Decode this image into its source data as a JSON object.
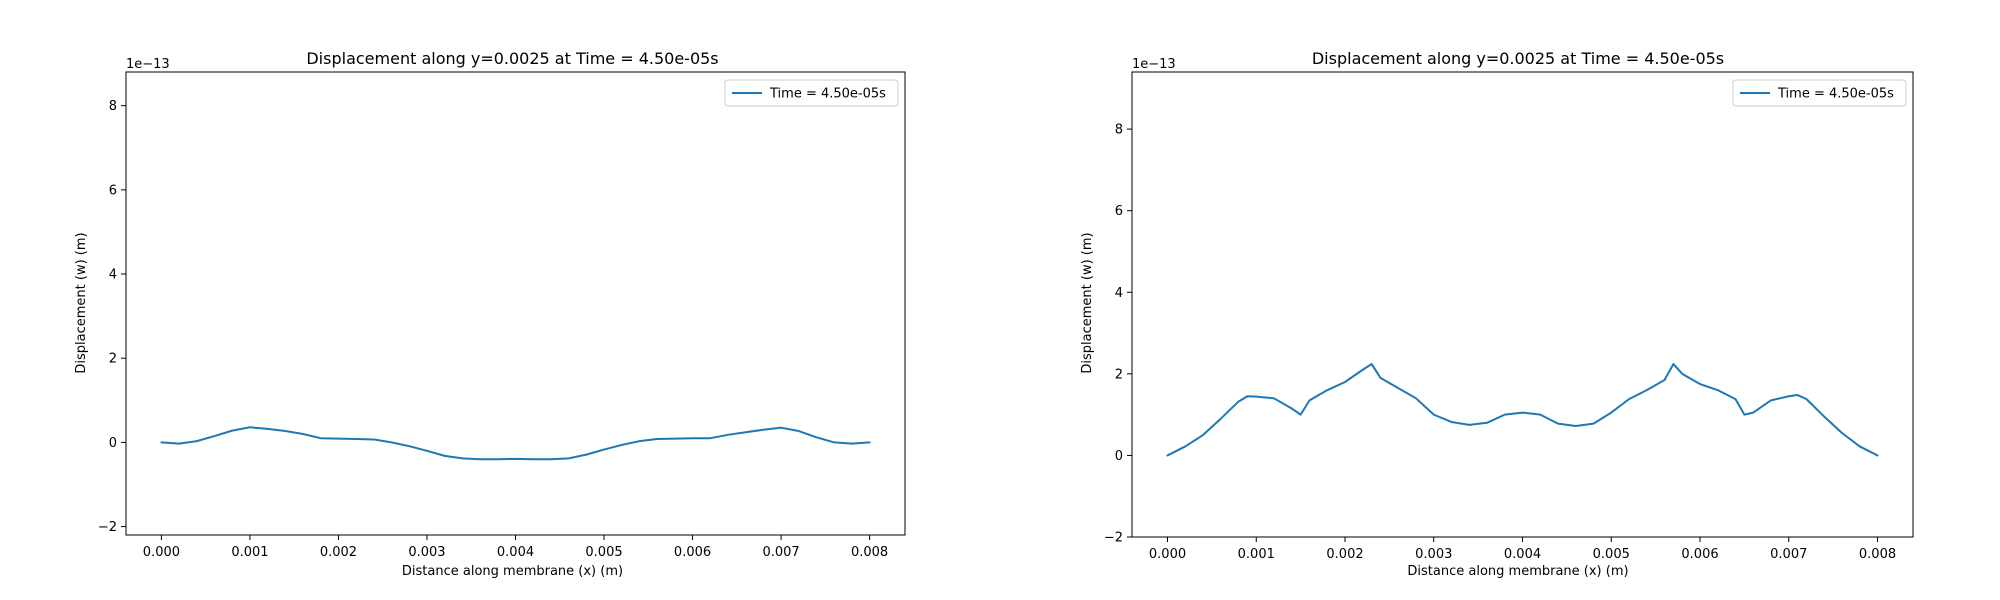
{
  "chart_data": [
    {
      "type": "line",
      "title": "Displacement along y=0.0025 at Time = 4.50e-05s",
      "xlabel": "Distance along membrane (x) (m)",
      "ylabel": "Displacement (w) (m)",
      "offset_label": "1e−13",
      "xlim": [
        -0.0004,
        0.0084
      ],
      "ylim": [
        -2.2,
        8.8
      ],
      "xticks": [
        0.0,
        0.001,
        0.002,
        0.003,
        0.004,
        0.005,
        0.006,
        0.007,
        0.008
      ],
      "xtick_labels": [
        "0.000",
        "0.001",
        "0.002",
        "0.003",
        "0.004",
        "0.005",
        "0.006",
        "0.007",
        "0.008"
      ],
      "yticks": [
        -2,
        0,
        2,
        4,
        6,
        8
      ],
      "ytick_labels": [
        "−2",
        "0",
        "2",
        "4",
        "6",
        "8"
      ],
      "legend_position": "upper right",
      "grid": false,
      "series": [
        {
          "name": "Time = 4.50e-05s",
          "color": "#1f77b4",
          "x": [
            0.0,
            0.0002,
            0.0004,
            0.0006,
            0.0008,
            0.001,
            0.0012,
            0.0014,
            0.0016,
            0.0018,
            0.002,
            0.0022,
            0.0024,
            0.0026,
            0.0028,
            0.003,
            0.0032,
            0.0034,
            0.0036,
            0.0038,
            0.004,
            0.0042,
            0.0044,
            0.0046,
            0.0048,
            0.005,
            0.0052,
            0.0054,
            0.0056,
            0.0058,
            0.006,
            0.0062,
            0.0064,
            0.0066,
            0.0068,
            0.007,
            0.0072,
            0.0074,
            0.0076,
            0.0078,
            0.008
          ],
          "y": [
            0.0,
            -0.03,
            0.03,
            0.15,
            0.28,
            0.36,
            0.32,
            0.27,
            0.2,
            0.1,
            0.09,
            0.08,
            0.07,
            0.0,
            -0.09,
            -0.2,
            -0.32,
            -0.38,
            -0.4,
            -0.4,
            -0.39,
            -0.4,
            -0.4,
            -0.38,
            -0.29,
            -0.17,
            -0.06,
            0.03,
            0.08,
            0.09,
            0.1,
            0.1,
            0.18,
            0.24,
            0.3,
            0.35,
            0.27,
            0.12,
            0.0,
            -0.03,
            0.0
          ]
        }
      ]
    },
    {
      "type": "line",
      "title": "Displacement along y=0.0025 at Time = 4.50e-05s",
      "xlabel": "Distance along membrane (x) (m)",
      "ylabel": "Displacement (w) (m)",
      "offset_label": "1e−13",
      "xlim": [
        -0.0004,
        0.0084
      ],
      "ylim": [
        -2.0,
        9.4
      ],
      "xticks": [
        0.0,
        0.001,
        0.002,
        0.003,
        0.004,
        0.005,
        0.006,
        0.007,
        0.008
      ],
      "xtick_labels": [
        "0.000",
        "0.001",
        "0.002",
        "0.003",
        "0.004",
        "0.005",
        "0.006",
        "0.007",
        "0.008"
      ],
      "yticks": [
        -2,
        0,
        2,
        4,
        6,
        8
      ],
      "ytick_labels": [
        "−2",
        "0",
        "2",
        "4",
        "6",
        "8"
      ],
      "legend_position": "upper right",
      "grid": false,
      "series": [
        {
          "name": "Time = 4.50e-05s",
          "color": "#1f77b4",
          "x": [
            0.0,
            0.0002,
            0.0004,
            0.0006,
            0.0008,
            0.0009,
            0.001,
            0.0012,
            0.0014,
            0.0015,
            0.0016,
            0.0018,
            0.002,
            0.0022,
            0.0023,
            0.0024,
            0.0026,
            0.0028,
            0.003,
            0.0032,
            0.0034,
            0.0036,
            0.0038,
            0.004,
            0.0042,
            0.0044,
            0.0046,
            0.0048,
            0.005,
            0.0052,
            0.0054,
            0.0056,
            0.0057,
            0.0058,
            0.006,
            0.0062,
            0.0064,
            0.0065,
            0.0066,
            0.0068,
            0.007,
            0.0071,
            0.0072,
            0.0074,
            0.0076,
            0.0078,
            0.008
          ],
          "y": [
            0.0,
            0.22,
            0.5,
            0.9,
            1.32,
            1.45,
            1.44,
            1.4,
            1.15,
            1.0,
            1.35,
            1.6,
            1.8,
            2.1,
            2.24,
            1.9,
            1.65,
            1.4,
            1.0,
            0.82,
            0.75,
            0.8,
            1.0,
            1.05,
            1.0,
            0.78,
            0.72,
            0.78,
            1.05,
            1.38,
            1.6,
            1.85,
            2.24,
            2.0,
            1.75,
            1.6,
            1.38,
            1.0,
            1.05,
            1.35,
            1.45,
            1.48,
            1.38,
            0.95,
            0.55,
            0.22,
            0.0
          ]
        }
      ]
    }
  ]
}
